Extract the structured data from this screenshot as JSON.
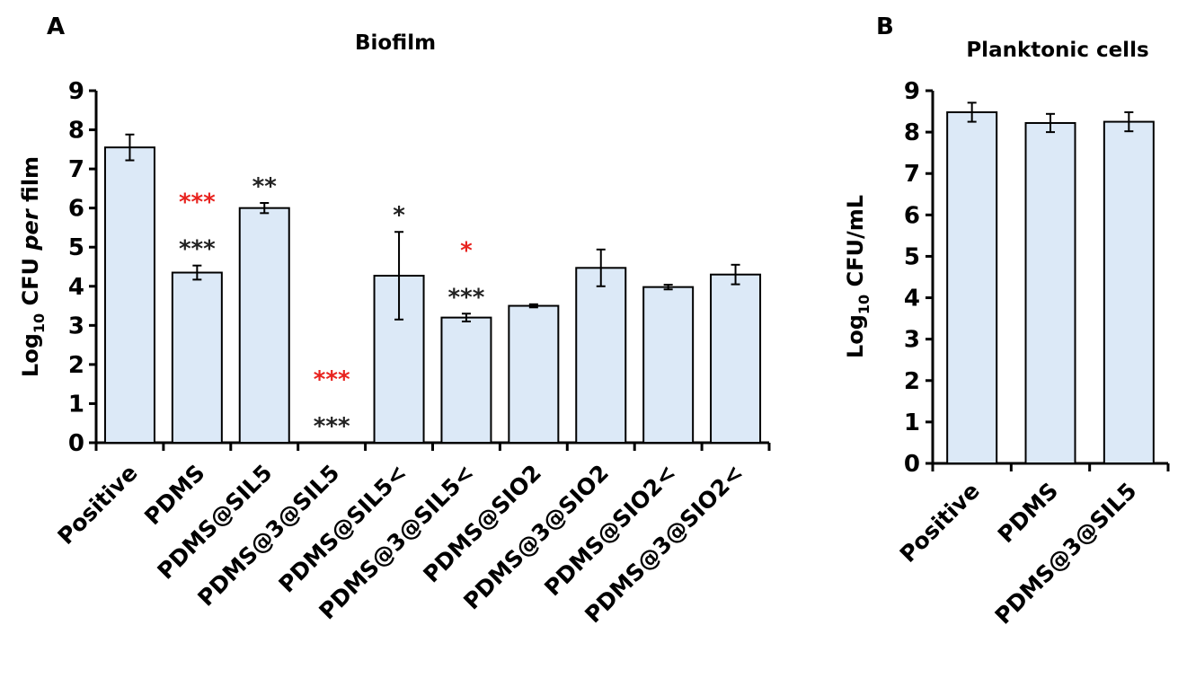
{
  "chart_data": [
    {
      "type": "bar",
      "panel": "A",
      "title": "Biofilm",
      "ylabel_parts": {
        "prefix": "Log",
        "sub": "10",
        "mid": " CFU ",
        "italic": "per",
        "suffix": " film"
      },
      "ylim": [
        0,
        9
      ],
      "yticks": [
        "0",
        "1",
        "2",
        "3",
        "4",
        "5",
        "6",
        "7",
        "8",
        "9"
      ],
      "categories": [
        "Positive",
        "PDMS",
        "PDMS@SIL5",
        "PDMS@3@SIL5",
        "PDMS@SIL5<",
        "PDMS@3@SIL5<",
        "PDMS@SIO2",
        "PDMS@3@SIO2",
        "PDMS@SIO2<",
        "PDMS@3@SIO2<"
      ],
      "values": [
        7.55,
        4.35,
        6.0,
        0,
        4.27,
        3.2,
        3.5,
        4.47,
        3.98,
        4.3
      ],
      "errors": [
        0.33,
        0.18,
        0.13,
        0,
        1.12,
        0.1,
        0.04,
        0.47,
        0.06,
        0.25
      ],
      "annotations": [
        {
          "category_index": 1,
          "lines": [
            {
              "text": "***",
              "color": "#e8231f"
            },
            {
              "text": "***",
              "color": "#222222"
            }
          ]
        },
        {
          "category_index": 2,
          "lines": [
            {
              "text": "**",
              "color": "#222222"
            }
          ]
        },
        {
          "category_index": 3,
          "lines": [
            {
              "text": "***",
              "color": "#e8231f"
            },
            {
              "text": "***",
              "color": "#222222"
            }
          ]
        },
        {
          "category_index": 4,
          "lines": [
            {
              "text": "*",
              "color": "#222222"
            }
          ]
        },
        {
          "category_index": 5,
          "lines": [
            {
              "text": "*",
              "color": "#e8231f"
            },
            {
              "text": "***",
              "color": "#222222"
            }
          ]
        }
      ],
      "bar_color": "#dce9f7",
      "grid": false
    },
    {
      "type": "bar",
      "panel": "B",
      "title": "Planktonic cells",
      "ylabel_parts": {
        "prefix": "Log",
        "sub": "10",
        "mid": " CFU/mL",
        "italic": "",
        "suffix": ""
      },
      "ylim": [
        0,
        9
      ],
      "yticks": [
        "0",
        "1",
        "2",
        "3",
        "4",
        "5",
        "6",
        "7",
        "8",
        "9"
      ],
      "categories": [
        "Positive",
        "PDMS",
        "PDMS@3@SIL5"
      ],
      "values": [
        8.48,
        8.22,
        8.25
      ],
      "errors": [
        0.23,
        0.22,
        0.23
      ],
      "annotations": [],
      "bar_color": "#dce9f7",
      "grid": false
    }
  ]
}
